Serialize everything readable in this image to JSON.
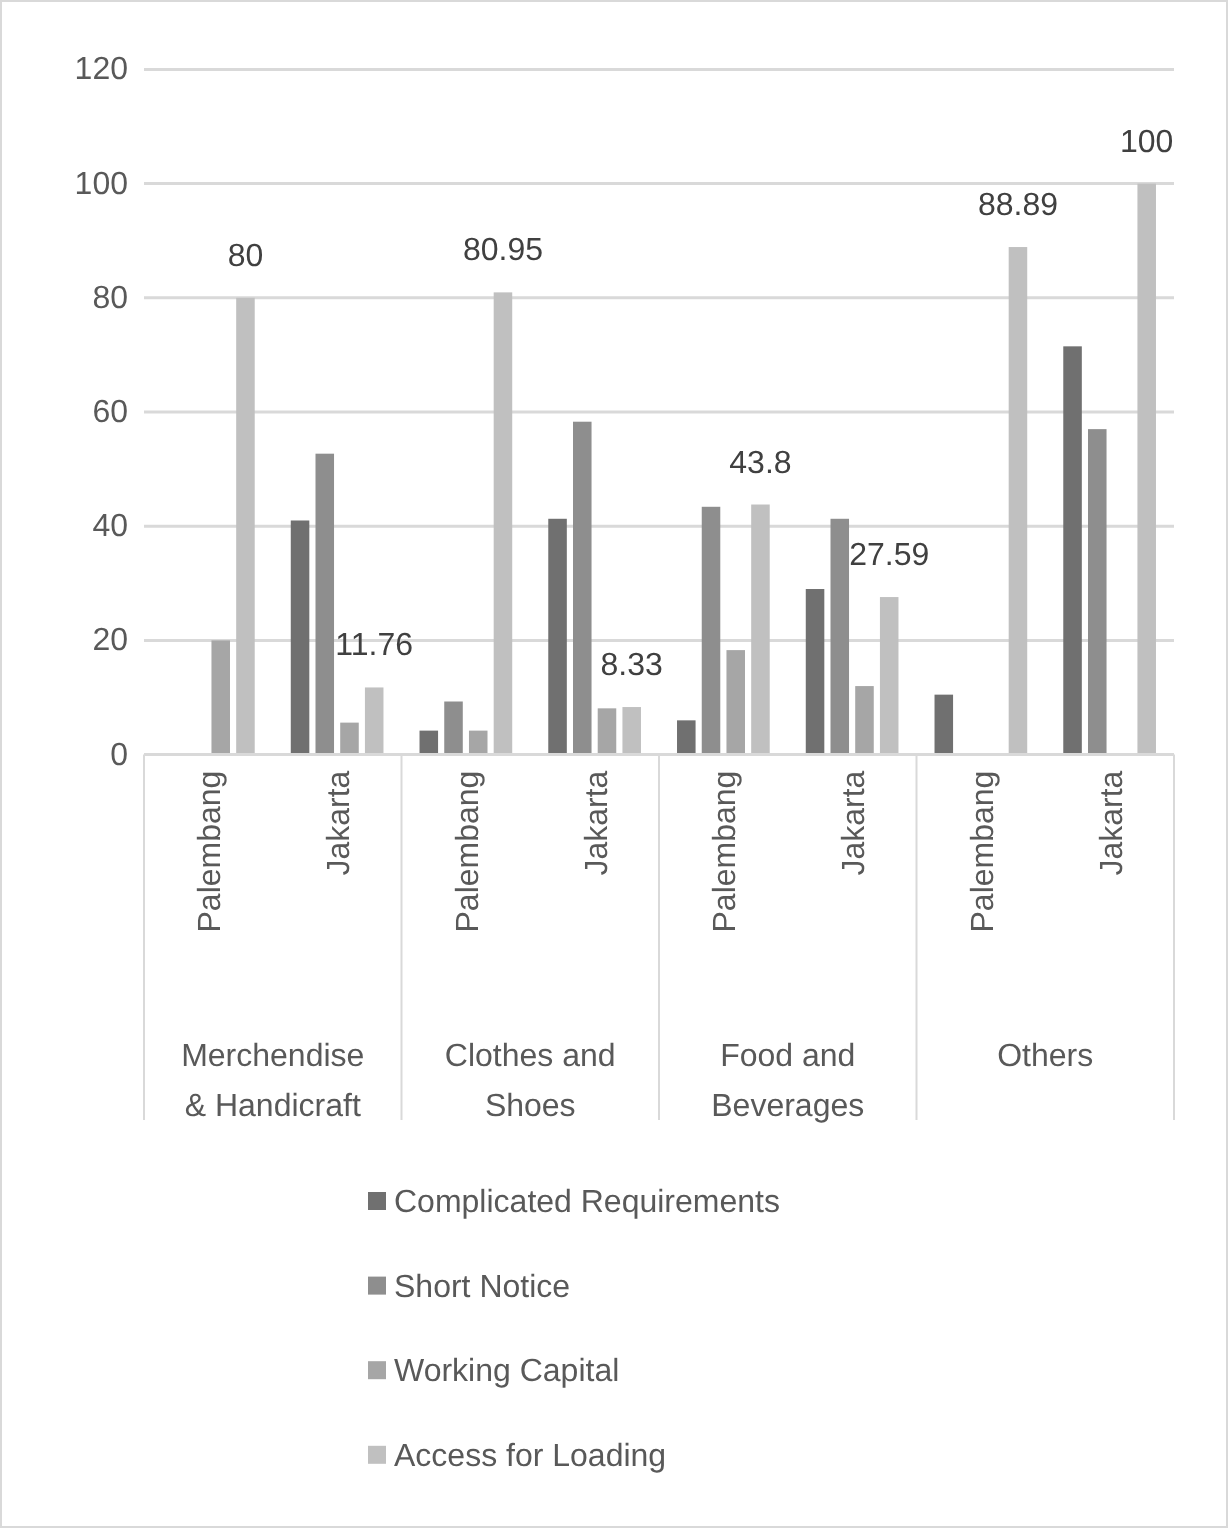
{
  "chart_data": {
    "type": "bar",
    "categories": [
      "Palembang",
      "Jakarta",
      "Palembang",
      "Jakarta",
      "Palembang",
      "Jakarta",
      "Palembang",
      "Jakarta"
    ],
    "annotations": [
      "Merchendise & Handicraft",
      "Clothes and Shoes",
      "Food and Beverages",
      "Others"
    ],
    "series": [
      {
        "name": "Complicated Requirements",
        "color": "#707070",
        "values": [
          0,
          41,
          4.2,
          41.3,
          6,
          29,
          10.5,
          71.5
        ]
      },
      {
        "name": "Short Notice",
        "color": "#8e8e8e",
        "values": [
          0,
          52.7,
          9.3,
          58.3,
          43.4,
          41.3,
          0,
          57
        ]
      },
      {
        "name": "Working Capital",
        "color": "#a6a6a6",
        "values": [
          20,
          5.6,
          4.2,
          8.1,
          18.3,
          12,
          0,
          0
        ]
      },
      {
        "name": "Access for Loading",
        "color": "#c0c0c0",
        "values": [
          80,
          11.76,
          80.95,
          8.33,
          43.8,
          27.59,
          88.89,
          100
        ],
        "value_labels": [
          "80",
          "11.76",
          "80.95",
          "8.33",
          "43.8",
          "27.59",
          "88.89",
          "100"
        ]
      }
    ],
    "ylim": [
      0,
      120
    ],
    "yticks": [
      0,
      20,
      40,
      60,
      80,
      100,
      120
    ],
    "grid": "y",
    "legend": "bottom"
  }
}
